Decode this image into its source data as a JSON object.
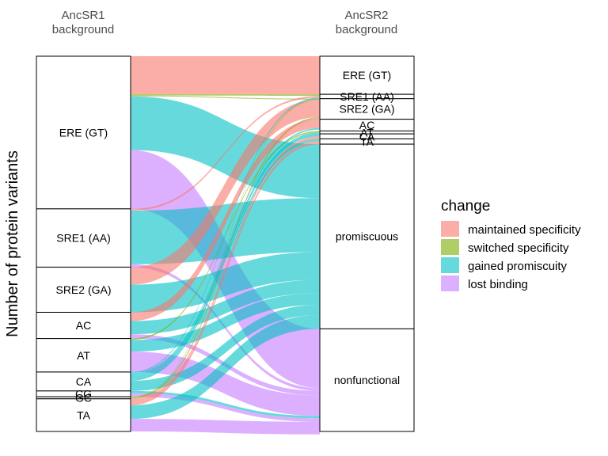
{
  "chart_data": {
    "type": "alluvial",
    "ylabel": "Number of protein variants",
    "axes": [
      {
        "title_line1": "AncSR1",
        "title_line2": "background"
      },
      {
        "title_line1": "AncSR2",
        "title_line2": "background"
      }
    ],
    "left_strata": [
      {
        "label": "ERE (GT)",
        "value": 52.4
      },
      {
        "label": "SRE1 (AA)",
        "value": 20.0
      },
      {
        "label": "SRE2 (GA)",
        "value": 15.5
      },
      {
        "label": "AC",
        "value": 9.0
      },
      {
        "label": "AT",
        "value": 11.5
      },
      {
        "label": "CA",
        "value": 6.5
      },
      {
        "label": "CG",
        "value": 2.0
      },
      {
        "label": "GC",
        "value": 0.7
      },
      {
        "label": "TA",
        "value": 11.2
      }
    ],
    "right_strata": [
      {
        "label": "ERE (GT)",
        "value": 13.0
      },
      {
        "label": "SRE1 (AA)",
        "value": 1.5
      },
      {
        "label": "SRE2 (GA)",
        "value": 7.0
      },
      {
        "label": "AC",
        "value": 4.0
      },
      {
        "label": "AT",
        "value": 1.0
      },
      {
        "label": "CA",
        "value": 1.7
      },
      {
        "label": "TA",
        "value": 1.8
      },
      {
        "label": "promiscuous",
        "value": 63.0
      },
      {
        "label": "nonfunctional",
        "value": 35.0
      }
    ],
    "flows": [
      {
        "from": "ERE (GT)",
        "to": "ERE (GT)",
        "change": "maintained specificity",
        "value": 13.0
      },
      {
        "from": "ERE (GT)",
        "to": "SRE1 (AA)",
        "change": "switched specificity",
        "value": 0.5
      },
      {
        "from": "ERE (GT)",
        "to": "SRE2 (GA)",
        "change": "switched specificity",
        "value": 0.3
      },
      {
        "from": "ERE (GT)",
        "to": "promiscuous",
        "change": "gained promiscuity",
        "value": 18.4
      },
      {
        "from": "ERE (GT)",
        "to": "nonfunctional",
        "change": "lost binding",
        "value": 20.2
      },
      {
        "from": "SRE1 (AA)",
        "to": "SRE1 (AA)",
        "change": "maintained specificity",
        "value": 0.6
      },
      {
        "from": "SRE1 (AA)",
        "to": "promiscuous",
        "change": "gained promiscuity",
        "value": 18.4
      },
      {
        "from": "SRE1 (AA)",
        "to": "nonfunctional",
        "change": "lost binding",
        "value": 1.0
      },
      {
        "from": "SRE2 (GA)",
        "to": "SRE2 (GA)",
        "change": "maintained specificity",
        "value": 6.0
      },
      {
        "from": "SRE2 (GA)",
        "to": "promiscuous",
        "change": "gained promiscuity",
        "value": 9.5
      },
      {
        "from": "AC",
        "to": "AC",
        "change": "maintained specificity",
        "value": 3.0
      },
      {
        "from": "AC",
        "to": "promiscuous",
        "change": "gained promiscuity",
        "value": 4.5
      },
      {
        "from": "AC",
        "to": "nonfunctional",
        "change": "lost binding",
        "value": 1.5
      },
      {
        "from": "AT",
        "to": "AT",
        "change": "switched specificity",
        "value": 0.5
      },
      {
        "from": "AT",
        "to": "promiscuous",
        "change": "gained promiscuity",
        "value": 4.0
      },
      {
        "from": "AT",
        "to": "nonfunctional",
        "change": "lost binding",
        "value": 7.0
      },
      {
        "from": "CA",
        "to": "SRE1 (AA)",
        "change": "gained promiscuity",
        "value": 0.4
      },
      {
        "from": "CA",
        "to": "AC",
        "change": "gained promiscuity",
        "value": 0.5
      },
      {
        "from": "CA",
        "to": "AT",
        "change": "gained promiscuity",
        "value": 0.5
      },
      {
        "from": "CA",
        "to": "CA",
        "change": "gained promiscuity",
        "value": 0.8
      },
      {
        "from": "CA",
        "to": "TA",
        "change": "gained promiscuity",
        "value": 0.8
      },
      {
        "from": "CA",
        "to": "promiscuous",
        "change": "gained promiscuity",
        "value": 3.5
      },
      {
        "from": "CG",
        "to": "nonfunctional",
        "change": "gained promiscuity",
        "value": 0.8
      },
      {
        "from": "CG",
        "to": "nonfunctional",
        "change": "lost binding",
        "value": 1.2
      },
      {
        "from": "GC",
        "to": "SRE1 (AA)",
        "change": "switched specificity",
        "value": 0.3
      },
      {
        "from": "GC",
        "to": "SRE2 (GA)",
        "change": "switched specificity",
        "value": 0.4
      },
      {
        "from": "TA",
        "to": "SRE2 (GA)",
        "change": "maintained specificity",
        "value": 0.3
      },
      {
        "from": "TA",
        "to": "CA",
        "change": "maintained specificity",
        "value": 0.9
      },
      {
        "from": "TA",
        "to": "TA",
        "change": "maintained specificity",
        "value": 1.0
      },
      {
        "from": "TA",
        "to": "promiscuous",
        "change": "gained promiscuity",
        "value": 4.7
      },
      {
        "from": "TA",
        "to": "nonfunctional",
        "change": "lost binding",
        "value": 4.3
      }
    ],
    "legend": {
      "title": "change",
      "placement": "right",
      "entries": [
        {
          "label": "maintained specificity",
          "color": "#f8766d"
        },
        {
          "label": "switched specificity",
          "color": "#7cae00"
        },
        {
          "label": "gained promiscuity",
          "color": "#00bfc4"
        },
        {
          "label": "lost binding",
          "color": "#c77cff"
        }
      ]
    },
    "flow_opacity": 0.6,
    "grid": false
  }
}
